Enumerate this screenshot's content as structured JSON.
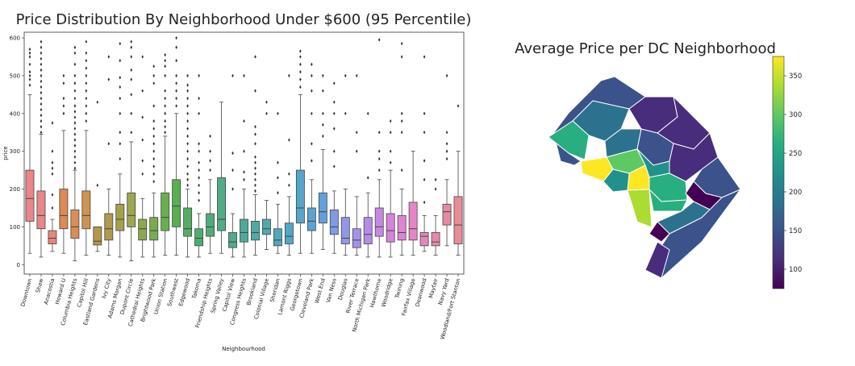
{
  "chart_data": [
    {
      "type": "box",
      "title": "Price Distribution By Neighborhood Under $600 (95 Percentile)",
      "xlabel": "Neighbourhood",
      "ylabel": "price",
      "ylim": [
        -25,
        615
      ],
      "yticks": [
        0,
        100,
        200,
        300,
        400,
        500,
        600
      ],
      "series": [
        {
          "name": "Downtown",
          "color": "#e8868a",
          "q1": 115,
          "median": 175,
          "q3": 250,
          "low": 30,
          "high": 450,
          "outliers": [
            475,
            490,
            500,
            510,
            530,
            550,
            560,
            570
          ]
        },
        {
          "name": "Shaw",
          "color": "#e8868a",
          "q1": 95,
          "median": 130,
          "q3": 195,
          "low": 20,
          "high": 345,
          "outliers": [
            350,
            365,
            380,
            395,
            410,
            425,
            440,
            455,
            470,
            485,
            500,
            515,
            530,
            545,
            560,
            575,
            590
          ]
        },
        {
          "name": "Anacostia",
          "color": "#e6867c",
          "q1": 55,
          "median": 70,
          "q3": 90,
          "low": 35,
          "high": 120,
          "outliers": [
            150,
            185,
            240,
            255,
            270,
            300,
            375
          ]
        },
        {
          "name": "Howard U",
          "color": "#dd8a55",
          "q1": 95,
          "median": 130,
          "q3": 200,
          "low": 30,
          "high": 355,
          "outliers": [
            400,
            420,
            440,
            480,
            500
          ]
        },
        {
          "name": "Columbia Heights",
          "color": "#d98e53",
          "q1": 70,
          "median": 100,
          "q3": 145,
          "low": 10,
          "high": 250,
          "outliers": [
            255,
            270,
            285,
            300,
            315,
            330,
            345,
            360,
            375,
            390,
            405,
            420,
            440,
            460,
            480,
            500,
            530,
            560,
            575
          ]
        },
        {
          "name": "Capitol Hill",
          "color": "#d0934f",
          "q1": 95,
          "median": 130,
          "q3": 195,
          "low": 25,
          "high": 355,
          "outliers": [
            380,
            400,
            420,
            440,
            460,
            480,
            500,
            520,
            540,
            560,
            590
          ]
        },
        {
          "name": "Eastland Gardens",
          "color": "#b4974a",
          "q1": 52,
          "median": 62,
          "q3": 100,
          "low": 35,
          "high": 100,
          "outliers": [
            210,
            430
          ]
        },
        {
          "name": "Ivy City",
          "color": "#b09a4c",
          "q1": 65,
          "median": 95,
          "q3": 135,
          "low": 25,
          "high": 200,
          "outliers": [
            320,
            490,
            550
          ]
        },
        {
          "name": "Adams Morgan",
          "color": "#a6a04b",
          "q1": 90,
          "median": 120,
          "q3": 160,
          "low": 20,
          "high": 240,
          "outliers": [
            280,
            320,
            350,
            400,
            440,
            470,
            495,
            540,
            585
          ]
        },
        {
          "name": "Dupont Circle",
          "color": "#9ea64e",
          "q1": 100,
          "median": 130,
          "q3": 190,
          "low": 10,
          "high": 325,
          "outliers": [
            350,
            400,
            450,
            490,
            515,
            550,
            575,
            590
          ]
        },
        {
          "name": "Cathedral Heights",
          "color": "#8caa4c",
          "q1": 65,
          "median": 95,
          "q3": 120,
          "low": 20,
          "high": 175,
          "outliers": [
            240,
            275,
            330,
            390,
            460,
            550
          ]
        },
        {
          "name": "Brightwood Park",
          "color": "#79ad4c",
          "q1": 65,
          "median": 90,
          "q3": 125,
          "low": 20,
          "high": 190,
          "outliers": [
            220,
            240,
            260,
            280,
            300,
            320,
            340,
            360,
            380,
            420,
            480,
            500,
            525
          ]
        },
        {
          "name": "Union Station",
          "color": "#68b04f",
          "q1": 90,
          "median": 125,
          "q3": 190,
          "low": 25,
          "high": 340,
          "outliers": [
            350,
            365,
            380,
            400,
            420,
            440,
            460,
            500,
            525,
            540,
            555
          ]
        },
        {
          "name": "Southwest",
          "color": "#5aaf4f",
          "q1": 100,
          "median": 155,
          "q3": 225,
          "low": 25,
          "high": 400,
          "outliers": [
            420,
            440,
            460,
            480,
            500,
            540,
            575,
            600
          ]
        },
        {
          "name": "Edgewood",
          "color": "#52af60",
          "q1": 75,
          "median": 95,
          "q3": 150,
          "low": 20,
          "high": 200,
          "outliers": [
            210,
            225,
            240,
            260,
            280,
            300,
            320,
            340,
            360,
            380,
            400,
            420,
            440,
            460,
            475,
            500
          ]
        },
        {
          "name": "Takoma",
          "color": "#4ead6e",
          "q1": 50,
          "median": 70,
          "q3": 95,
          "low": 20,
          "high": 135,
          "outliers": [
            170,
            190,
            210,
            230,
            250,
            270,
            300,
            320,
            400,
            440,
            500
          ]
        },
        {
          "name": "Friendship Heights",
          "color": "#4fac7a",
          "q1": 75,
          "median": 100,
          "q3": 135,
          "low": 30,
          "high": 225,
          "outliers": [
            250,
            275,
            300,
            340
          ]
        },
        {
          "name": "Spring Valley",
          "color": "#4fac85",
          "q1": 90,
          "median": 120,
          "q3": 230,
          "low": 30,
          "high": 430,
          "outliers": []
        },
        {
          "name": "Capitol View",
          "color": "#4eaa90",
          "q1": 45,
          "median": 60,
          "q3": 85,
          "low": 20,
          "high": 135,
          "outliers": [
            200,
            250,
            295,
            500
          ]
        },
        {
          "name": "Congress Heights",
          "color": "#4daa9a",
          "q1": 60,
          "median": 85,
          "q3": 120,
          "low": 20,
          "high": 200,
          "outliers": [
            225,
            245,
            300,
            380,
            500
          ]
        },
        {
          "name": "Brookland",
          "color": "#4eaaa6",
          "q1": 65,
          "median": 85,
          "q3": 115,
          "low": 25,
          "high": 185,
          "outliers": [
            195,
            210,
            225,
            240,
            255,
            270,
            285,
            320,
            345,
            365,
            460,
            550
          ]
        },
        {
          "name": "Colonial Village",
          "color": "#4faab0",
          "q1": 80,
          "median": 95,
          "q3": 120,
          "low": 40,
          "high": 170,
          "outliers": [
            400,
            430
          ]
        },
        {
          "name": "Sheridan",
          "color": "#50a8ba",
          "q1": 50,
          "median": 65,
          "q3": 95,
          "low": 30,
          "high": 160,
          "outliers": [
            190,
            230,
            270,
            400
          ]
        },
        {
          "name": "Lamont Riggs",
          "color": "#52a7c3",
          "q1": 55,
          "median": 75,
          "q3": 110,
          "low": 25,
          "high": 180,
          "outliers": [
            210,
            240,
            330,
            500
          ]
        },
        {
          "name": "Georgetown",
          "color": "#55a5cc",
          "q1": 110,
          "median": 150,
          "q3": 250,
          "low": 30,
          "high": 450,
          "outliers": [
            470,
            490,
            510,
            530,
            550,
            565
          ]
        },
        {
          "name": "Cleveland Park",
          "color": "#5aa3d4",
          "q1": 90,
          "median": 115,
          "q3": 150,
          "low": 30,
          "high": 225,
          "outliers": [
            275,
            320,
            400,
            460,
            500,
            530
          ]
        },
        {
          "name": "West End",
          "color": "#62a0dc",
          "q1": 110,
          "median": 140,
          "q3": 190,
          "low": 40,
          "high": 305,
          "outliers": [
            340,
            370,
            400,
            460,
            500
          ]
        },
        {
          "name": "Van Ness",
          "color": "#7e9be4",
          "q1": 80,
          "median": 100,
          "q3": 145,
          "low": 30,
          "high": 195,
          "outliers": [
            260,
            300,
            360,
            400,
            430,
            480
          ]
        },
        {
          "name": "Douglas",
          "color": "#9297e6",
          "q1": 55,
          "median": 70,
          "q3": 125,
          "low": 25,
          "high": 200,
          "outliers": [
            400,
            500
          ]
        },
        {
          "name": "River Terrace",
          "color": "#a592e6",
          "q1": 45,
          "median": 65,
          "q3": 95,
          "low": 25,
          "high": 180,
          "outliers": [
            300,
            350,
            500
          ]
        },
        {
          "name": "North Michigan Park",
          "color": "#b48ce6",
          "q1": 55,
          "median": 80,
          "q3": 125,
          "low": 20,
          "high": 190,
          "outliers": [
            230,
            400
          ]
        },
        {
          "name": "Hawthorne",
          "color": "#c788e3",
          "q1": 75,
          "median": 100,
          "q3": 150,
          "low": 20,
          "high": 225,
          "outliers": [
            250,
            280,
            300,
            350,
            595
          ]
        },
        {
          "name": "Woodridge",
          "color": "#d584dc",
          "q1": 60,
          "median": 90,
          "q3": 135,
          "low": 20,
          "high": 250,
          "outliers": [
            270,
            300,
            350,
            380
          ]
        },
        {
          "name": "Twining",
          "color": "#df84d2",
          "q1": 65,
          "median": 85,
          "q3": 130,
          "low": 25,
          "high": 200,
          "outliers": [
            250,
            350,
            380,
            400,
            550,
            585
          ]
        },
        {
          "name": "Fairfax Village",
          "color": "#e685c6",
          "q1": 65,
          "median": 95,
          "q3": 165,
          "low": 25,
          "high": 300,
          "outliers": []
        },
        {
          "name": "Deanwood",
          "color": "#e687b9",
          "q1": 50,
          "median": 75,
          "q3": 85,
          "low": 35,
          "high": 130,
          "outliers": [
            165,
            225,
            275,
            350,
            400,
            550
          ]
        },
        {
          "name": "Mayfair",
          "color": "#e787ad",
          "q1": 50,
          "median": 60,
          "q3": 85,
          "low": 25,
          "high": 130,
          "outliers": [
            200,
            225
          ]
        },
        {
          "name": "Navy Yard",
          "color": "#e88aa3",
          "q1": 105,
          "median": 140,
          "q3": 160,
          "low": 50,
          "high": 225,
          "outliers": [
            280,
            300,
            320,
            350,
            500
          ]
        },
        {
          "name": "Woodland/Fort Stanton",
          "color": "#ea8c98",
          "q1": 55,
          "median": 105,
          "q3": 180,
          "low": 25,
          "high": 300,
          "outliers": [
            420
          ]
        }
      ]
    },
    {
      "type": "choropleth",
      "title": "Average Price per DC Neighborhood",
      "colormap": "viridis",
      "colorbar": {
        "min": 75,
        "max": 375,
        "ticks": [
          100,
          150,
          200,
          250,
          300,
          350
        ]
      }
    }
  ]
}
